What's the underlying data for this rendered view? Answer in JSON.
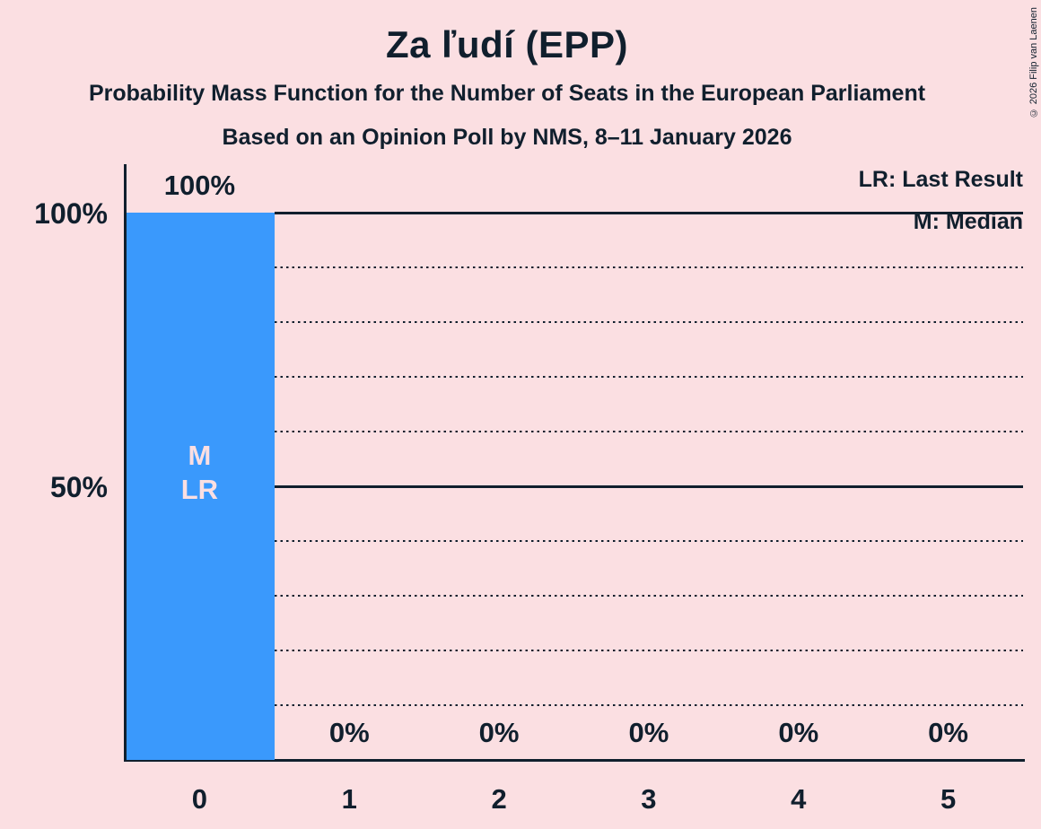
{
  "header": {
    "title": "Za ľudí (EPP)",
    "subtitle1": "Probability Mass Function for the Number of Seats in the European Parliament",
    "subtitle2": "Based on an Opinion Poll by NMS, 8–11 January 2026"
  },
  "legend": {
    "lr": "LR: Last Result",
    "m": "M: Median"
  },
  "yaxis": {
    "top_label": "100%",
    "mid_label": "50%"
  },
  "copyright": "© 2026 Filip van Laenen",
  "colors": {
    "background": "#fbdfe2",
    "bar": "#3a99fc",
    "text": "#101f2d"
  },
  "chart_data": {
    "type": "bar",
    "title": "Za ľudí (EPP)",
    "subtitle": "Probability Mass Function for the Number of Seats in the European Parliament",
    "source_note": "Based on an Opinion Poll by NMS, 8–11 January 2026",
    "categories": [
      "0",
      "1",
      "2",
      "3",
      "4",
      "5"
    ],
    "values": [
      100,
      0,
      0,
      0,
      0,
      0
    ],
    "value_labels": [
      "100%",
      "0%",
      "0%",
      "0%",
      "0%",
      "0%"
    ],
    "xlabel": "",
    "ylabel": "",
    "ylim": [
      0,
      100
    ],
    "ytick_labels": [
      "100%",
      "50%"
    ],
    "gridlines_solid_pct": [
      100,
      50
    ],
    "gridlines_dotted_pct": [
      90,
      80,
      70,
      60,
      40,
      30,
      20,
      10
    ],
    "grid": true,
    "legend_position": "top-right",
    "legend_entries": [
      "LR: Last Result",
      "M: Median"
    ],
    "annotations": [
      {
        "category_index": 0,
        "lines": [
          "M",
          "LR"
        ],
        "meaning": "Median and Last Result at 0 seats"
      }
    ]
  }
}
